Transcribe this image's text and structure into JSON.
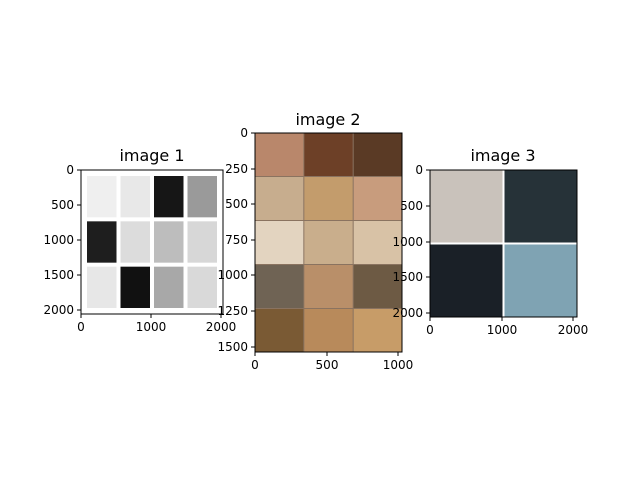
{
  "panels": [
    {
      "title": "image 1",
      "xticks": [
        "0",
        "1000",
        "2000"
      ],
      "yticks": [
        "0",
        "500",
        "1000",
        "1500",
        "2000"
      ],
      "grid": {
        "cols": 4,
        "rows": 3,
        "background": "#ffffff",
        "tiles": [
          "#efefef",
          "#e8e8e8",
          "#161616",
          "#9a9a9a",
          "#1e1e1e",
          "#dcdcdc",
          "#bdbdbd",
          "#d7d7d7",
          "#e7e7e7",
          "#111111",
          "#a8a8a8",
          "#d9d9d9"
        ]
      }
    },
    {
      "title": "image 2",
      "xticks": [
        "0",
        "500",
        "1000"
      ],
      "yticks": [
        "0",
        "250",
        "500",
        "750",
        "1000",
        "1250",
        "1500"
      ],
      "grid": {
        "cols": 3,
        "rows": 5,
        "background": "#8a7360",
        "tiles": [
          "#b9876b",
          "#6d4027",
          "#5a3a25",
          "#c7ad8e",
          "#c39c6c",
          "#c89c7d",
          "#e3d4c0",
          "#c9ae8c",
          "#d8c2a6",
          "#6f6354",
          "#b98f69",
          "#6d5a44",
          "#7a5a34",
          "#b88a5b",
          "#c79c68"
        ]
      }
    },
    {
      "title": "image 3",
      "xticks": [
        "0",
        "1000",
        "2000"
      ],
      "yticks": [
        "0",
        "500",
        "1000",
        "1500",
        "2000"
      ],
      "grid": {
        "cols": 2,
        "rows": 2,
        "background": "#ffffff",
        "tiles": [
          "#c9c2bb",
          "#263238",
          "#1a2027",
          "#7fa3b3"
        ]
      }
    }
  ]
}
